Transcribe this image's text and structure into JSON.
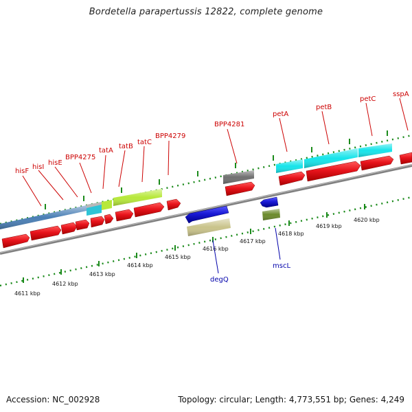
{
  "title": "Bordetella parapertussis 12822, complete genome",
  "footer": {
    "accession": "Accession: NC_002928",
    "topology": "Topology: circular; Length: 4,773,551 bp; Genes: 4,249"
  },
  "colors": {
    "top_labels": "#cc0000",
    "bottom_labels": "#0000aa",
    "backbone": "#808080",
    "ticks": "#1a8a1a"
  },
  "ruler_labels": [
    "4611 kbp",
    "4612 kbp",
    "4613 kbp",
    "4614 kbp",
    "4615 kbp",
    "4616 kbp",
    "4617 kbp",
    "4618 kbp",
    "4619 kbp",
    "4620 kbp"
  ],
  "gene_labels_forward": [
    "hisF",
    "hisI",
    "hisE",
    "BPP4275",
    "tatA",
    "tatB",
    "tatC",
    "BPP4279",
    "BPP4281",
    "petA",
    "petB",
    "petC",
    "sspA"
  ],
  "gene_labels_reverse": [
    "degQ",
    "mscL"
  ],
  "features_forward": [
    {
      "kind": "cds",
      "color": "#e8141c"
    },
    {
      "kind": "cds",
      "color": "#e8141c"
    },
    {
      "kind": "cds",
      "color": "#e8141c"
    },
    {
      "kind": "cds",
      "color": "#e8141c"
    },
    {
      "kind": "cds",
      "color": "#e8141c"
    },
    {
      "kind": "cds",
      "color": "#e8141c"
    },
    {
      "kind": "cds",
      "color": "#e8141c"
    },
    {
      "kind": "cds",
      "color": "#e8141c"
    },
    {
      "kind": "cds",
      "color": "#e8141c"
    },
    {
      "kind": "cds",
      "color": "#e8141c"
    },
    {
      "kind": "cds",
      "color": "#e8141c"
    },
    {
      "kind": "cds",
      "color": "#e8141c"
    },
    {
      "kind": "cds",
      "color": "#e8141c"
    },
    {
      "kind": "cds",
      "color": "#e8141c"
    }
  ],
  "features_reverse": [
    {
      "kind": "cds",
      "color": "#1a1ad6"
    },
    {
      "kind": "cds",
      "color": "#1a1ad6"
    }
  ],
  "cog_bars": [
    {
      "color": "#4a7fb5"
    },
    {
      "color": "#b8b8b8"
    },
    {
      "color": "#2ec4d6"
    },
    {
      "color": "#b7e83a"
    },
    {
      "color": "#b7e83a"
    },
    {
      "color": "#707070"
    },
    {
      "color": "#16e4ea"
    },
    {
      "color": "#16e4ea"
    },
    {
      "color": "#16e4ea"
    },
    {
      "color": "#c9c38a"
    },
    {
      "color": "#6b8a2a"
    }
  ]
}
